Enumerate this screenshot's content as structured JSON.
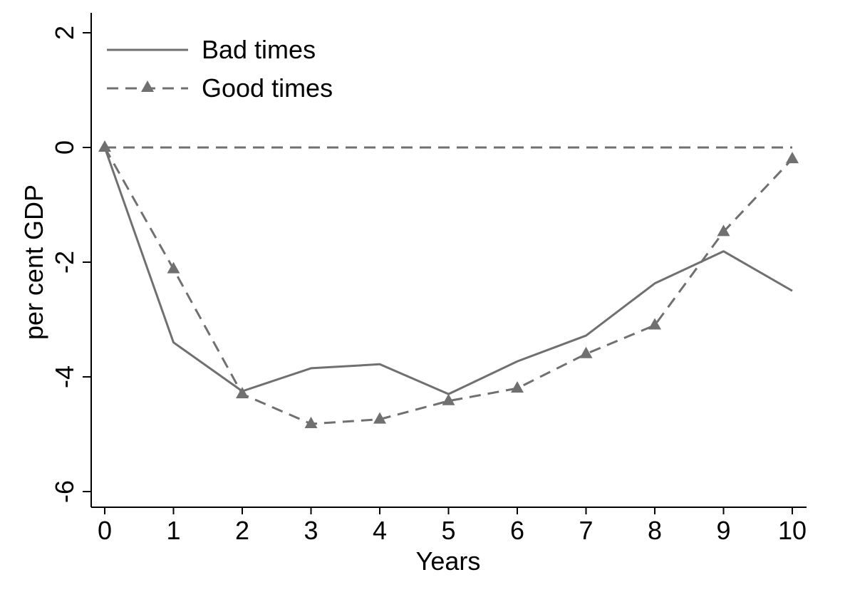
{
  "chart_data": {
    "type": "line",
    "title": "",
    "xlabel": "Years",
    "ylabel": "per cent GDP",
    "x": [
      0,
      1,
      2,
      3,
      4,
      5,
      6,
      7,
      8,
      9,
      10
    ],
    "xlim": [
      0,
      10
    ],
    "ylim": [
      -6,
      2
    ],
    "xticks": [
      "0",
      "1",
      "2",
      "3",
      "4",
      "5",
      "6",
      "7",
      "8",
      "9",
      "10"
    ],
    "yticks": [
      {
        "value": 2,
        "label": "2"
      },
      {
        "value": 0,
        "label": "0"
      },
      {
        "value": -2,
        "label": "-2"
      },
      {
        "value": -4,
        "label": "-4"
      },
      {
        "value": -6,
        "label": "-6"
      }
    ],
    "grid": false,
    "legend_position": "top-left",
    "series": [
      {
        "name": "Bad times",
        "style": "solid",
        "marker": "none",
        "color": "#707070",
        "values": [
          0,
          -3.4,
          -4.25,
          -3.85,
          -3.78,
          -4.3,
          -3.73,
          -3.28,
          -2.37,
          -1.81,
          -2.5
        ]
      },
      {
        "name": "Good times",
        "style": "dashed",
        "marker": "triangle",
        "color": "#707070",
        "values": [
          0,
          -2.12,
          -4.3,
          -4.82,
          -4.74,
          -4.42,
          -4.2,
          -3.6,
          -3.1,
          -1.47,
          -0.2
        ]
      }
    ],
    "reference_lines": [
      {
        "y": 0,
        "style": "dashed",
        "color": "#707070"
      }
    ]
  }
}
